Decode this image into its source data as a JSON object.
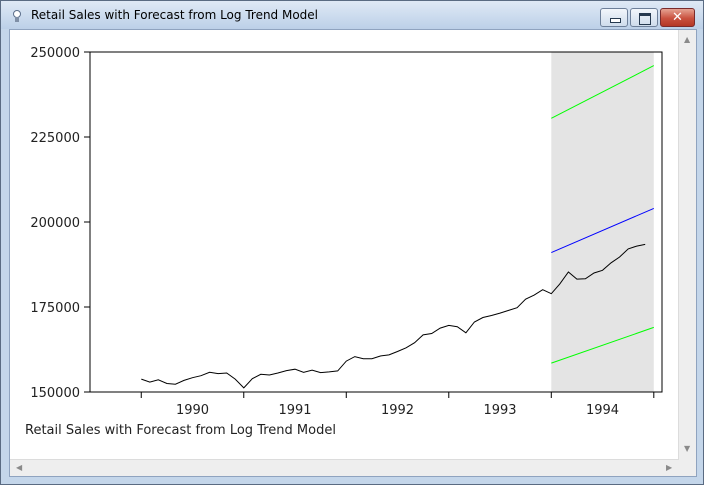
{
  "window": {
    "title": "Retail Sales with Forecast from Log Trend Model",
    "buttons": {
      "minimize": "minimize",
      "maximize": "maximize",
      "close": "✕"
    }
  },
  "footnote": "Retail Sales with Forecast from Log Trend Model",
  "colors": {
    "actual": "#000000",
    "forecast": "#0000ff",
    "bands": "#00ff00",
    "forecast_region": "#e4e4e4"
  },
  "chart_data": {
    "type": "line",
    "title": "Retail Sales with Forecast from Log Trend Model",
    "xlabel": "",
    "ylabel": "",
    "xlim": [
      1989.5,
      1995.08
    ],
    "ylim": [
      150000,
      250000
    ],
    "y_ticks": [
      150000,
      175000,
      200000,
      225000,
      250000
    ],
    "x_ticks": [
      {
        "label": "1990",
        "at": 1990.5
      },
      {
        "label": "1991",
        "at": 1991.5
      },
      {
        "label": "1992",
        "at": 1992.5
      },
      {
        "label": "1993",
        "at": 1993.5
      },
      {
        "label": "1994",
        "at": 1994.5
      }
    ],
    "x_minor_ticks": [
      1990,
      1991,
      1992,
      1993,
      1994,
      1995
    ],
    "grid": false,
    "legend": "none",
    "forecast_region": [
      1994.0,
      1995.0
    ],
    "series": [
      {
        "role": "actual",
        "x_start": 1990.0,
        "step": 0.08333,
        "values": [
          153800,
          152900,
          153600,
          152500,
          152300,
          153400,
          154200,
          154800,
          155800,
          155400,
          155600,
          153800,
          151200,
          153900,
          155200,
          155000,
          155600,
          156300,
          156700,
          155800,
          156400,
          155700,
          155900,
          156200,
          159100,
          160400,
          159800,
          159800,
          160600,
          160900,
          161900,
          163000,
          164500,
          166800,
          167200,
          168800,
          169600,
          169200,
          167400,
          170600,
          171900,
          172500,
          173200,
          174000,
          174800,
          177300,
          178500,
          180100,
          178900,
          181800,
          185300,
          183200,
          183300,
          185000,
          185800,
          188000,
          189700,
          192100,
          192900,
          193400
        ]
      },
      {
        "role": "forecast",
        "x": [
          1994.0,
          1995.0
        ],
        "values": [
          191000,
          204000
        ]
      },
      {
        "role": "upper-band",
        "x": [
          1994.0,
          1995.0
        ],
        "values": [
          230500,
          246000
        ]
      },
      {
        "role": "lower-band",
        "x": [
          1994.0,
          1995.0
        ],
        "values": [
          158500,
          169000
        ]
      }
    ]
  }
}
